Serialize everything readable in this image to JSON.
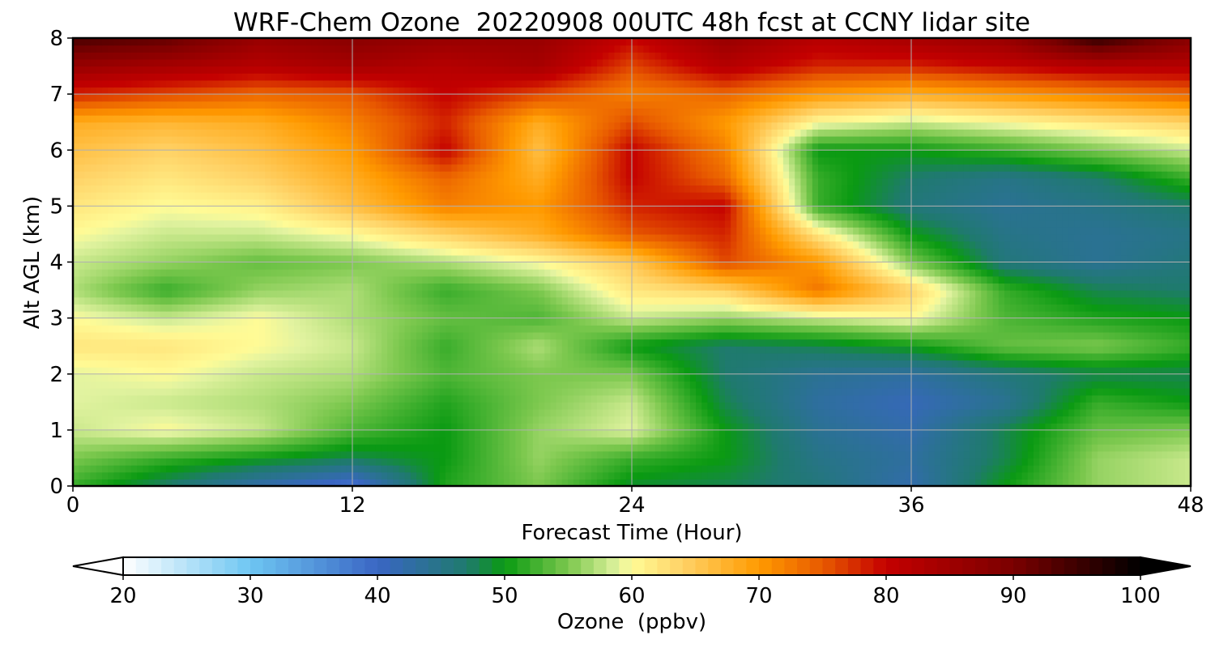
{
  "chart_data": {
    "type": "heatmap",
    "title": "WRF-Chem Ozone  20220908 00UTC 48h fcst at CCNY lidar site",
    "xlabel": "Forecast Time (Hour)",
    "ylabel": "Alt AGL (km)",
    "xlim": [
      0,
      48
    ],
    "ylim": [
      0,
      8
    ],
    "x_ticks": [
      0,
      12,
      24,
      36,
      48
    ],
    "y_ticks": [
      0,
      1,
      2,
      3,
      4,
      5,
      6,
      7,
      8
    ],
    "grid": true,
    "x": [
      0,
      4,
      8,
      12,
      16,
      20,
      24,
      28,
      32,
      36,
      40,
      44,
      48
    ],
    "y": [
      0,
      0.5,
      1,
      1.5,
      2,
      2.5,
      3,
      3.5,
      4,
      4.5,
      5,
      5.5,
      6,
      6.5,
      7,
      7.5,
      8
    ],
    "z": [
      [
        52,
        47,
        42,
        38,
        51,
        55,
        49,
        48,
        46,
        42,
        50,
        56,
        58
      ],
      [
        55,
        52,
        50,
        48,
        50,
        56,
        52,
        50,
        45,
        43,
        48,
        56,
        58
      ],
      [
        58,
        60,
        58,
        53,
        50,
        56,
        59,
        50,
        44,
        42,
        48,
        54,
        55
      ],
      [
        59,
        58,
        57,
        55,
        51,
        55,
        58,
        48,
        43,
        41,
        44,
        52,
        50
      ],
      [
        59,
        60,
        58,
        57,
        53,
        55,
        55,
        47,
        44,
        43,
        46,
        48,
        48
      ],
      [
        62,
        62,
        60,
        58,
        52,
        57,
        50,
        47,
        48,
        50,
        54,
        55,
        52
      ],
      [
        60,
        58,
        60,
        57,
        54,
        53,
        58,
        56,
        58,
        60,
        53,
        51,
        50
      ],
      [
        57,
        52,
        56,
        57,
        52,
        55,
        62,
        64,
        73,
        64,
        52,
        48,
        47
      ],
      [
        58,
        56,
        54,
        55,
        57,
        60,
        65,
        76,
        70,
        55,
        46,
        44,
        46
      ],
      [
        60,
        58,
        58,
        60,
        64,
        68,
        75,
        78,
        62,
        50,
        45,
        44,
        45
      ],
      [
        62,
        60,
        61,
        66,
        72,
        70,
        78,
        80,
        52,
        46,
        44,
        45,
        47
      ],
      [
        64,
        62,
        64,
        68,
        74,
        68,
        80,
        74,
        52,
        47,
        45,
        47,
        52
      ],
      [
        66,
        64,
        66,
        70,
        80,
        66,
        80,
        72,
        50,
        50,
        52,
        55,
        58
      ],
      [
        68,
        67,
        68,
        72,
        78,
        68,
        76,
        70,
        60,
        58,
        60,
        62,
        64
      ],
      [
        78,
        76,
        74,
        75,
        80,
        76,
        72,
        74,
        70,
        68,
        70,
        72,
        74
      ],
      [
        86,
        84,
        82,
        84,
        82,
        84,
        76,
        82,
        78,
        78,
        80,
        82,
        82
      ],
      [
        94,
        92,
        86,
        88,
        86,
        86,
        80,
        86,
        82,
        84,
        86,
        96,
        88
      ]
    ],
    "colorbar": {
      "label": "Ozone  (ppbv)",
      "min": 20,
      "max": 100,
      "ticks": [
        20,
        30,
        40,
        50,
        60,
        70,
        80,
        90,
        100
      ],
      "extend": "both",
      "stops": [
        [
          20,
          "#ffffff"
        ],
        [
          30,
          "#6ec6f2"
        ],
        [
          40,
          "#3a66c4"
        ],
        [
          47,
          "#1f7a6e"
        ],
        [
          50,
          "#0a9a12"
        ],
        [
          55,
          "#7cc84e"
        ],
        [
          59,
          "#e2f3a0"
        ],
        [
          60,
          "#fffb96"
        ],
        [
          64,
          "#ffd266"
        ],
        [
          70,
          "#ff9a00"
        ],
        [
          75,
          "#e85a00"
        ],
        [
          80,
          "#c40000"
        ],
        [
          90,
          "#7a0000"
        ],
        [
          100,
          "#000000"
        ]
      ]
    }
  }
}
